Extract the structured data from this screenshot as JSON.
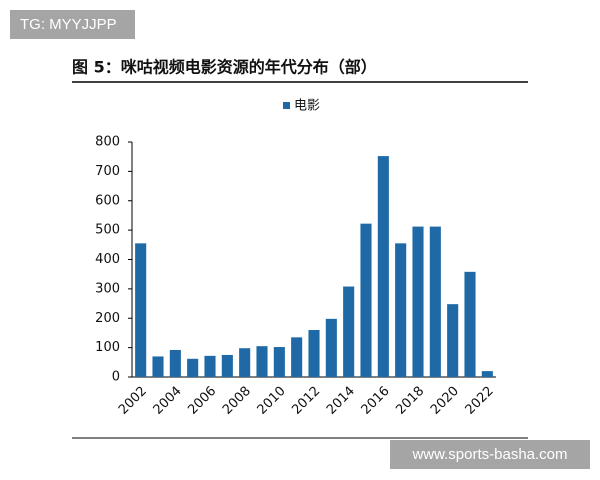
{
  "watermark_top": "TG: MYYJJPP",
  "watermark_bottom": "www.sports-basha.com",
  "chart_data": {
    "type": "bar",
    "title": "图 5：咪咕视频电影资源的年代分布（部）",
    "categories": [
      "2002",
      null,
      "2004",
      null,
      "2006",
      null,
      "2008",
      null,
      "2010",
      null,
      "2012",
      null,
      "2014",
      null,
      "2016",
      null,
      "2018",
      null,
      "2020",
      null,
      "2022"
    ],
    "series": [
      {
        "name": "电影",
        "color": "#1f6aa6",
        "values": [
          455,
          70,
          92,
          62,
          72,
          75,
          98,
          105,
          102,
          135,
          160,
          198,
          308,
          522,
          752,
          455,
          512,
          512,
          248,
          358,
          20
        ]
      }
    ],
    "ylim": [
      0,
      800
    ],
    "yticks": [
      0,
      100,
      200,
      300,
      400,
      500,
      600,
      700,
      800
    ],
    "grid": false
  }
}
